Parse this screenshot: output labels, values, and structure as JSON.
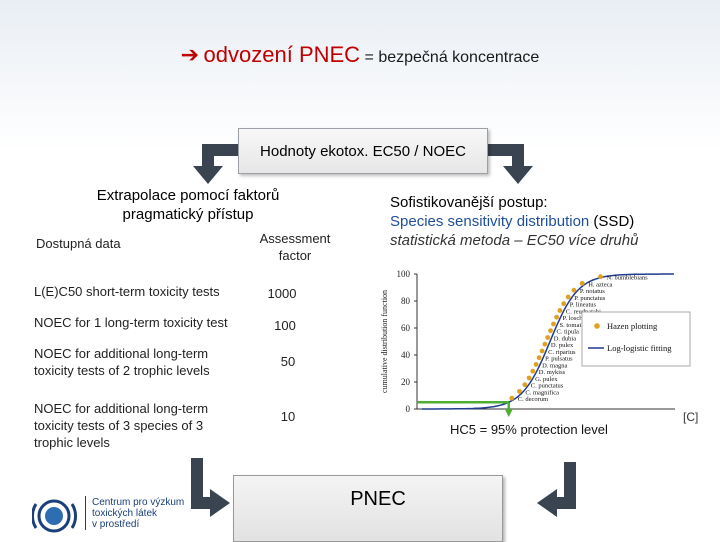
{
  "title": {
    "arrow": "➔",
    "main": "odvození PNEC",
    "sub": "= bezpečná koncentrace"
  },
  "center_box": {
    "label": "Hodnoty ekotox. EC50 / NOEC"
  },
  "left": {
    "heading_line1": "Extrapolace pomocí faktorů",
    "heading_line2": "pragmatický přístup",
    "col_data": "Dostupná data",
    "col_factor_line1": "Assessment",
    "col_factor_line2": "factor",
    "rows": [
      {
        "line1": "L(E)C50 short-term toxicity tests",
        "line2": "",
        "line3": "",
        "factor": "1000"
      },
      {
        "line1": "NOEC for 1 long-term toxicity test",
        "line2": "",
        "line3": "",
        "factor": "100"
      },
      {
        "line1": "NOEC for additional long-term",
        "line2": "toxicity tests of 2 trophic levels",
        "line3": "",
        "factor": "50"
      },
      {
        "line1": "NOEC for additional long-term",
        "line2": "toxicity tests of 3 species of 3",
        "line3": "trophic levels",
        "factor": "10"
      }
    ]
  },
  "right": {
    "line1": "Sofistikovanější postup:",
    "line2_blue": "Species sensitivity distribution",
    "line2_rest": " (SSD)",
    "line3": "statistická metoda – EC50 více druhů"
  },
  "chart_data": {
    "type": "scatter",
    "ylabel": "cumulative distribution function",
    "yticks": [
      "0",
      "20",
      "40",
      "60",
      "80",
      "100"
    ],
    "ylim": [
      0,
      100
    ],
    "legend": {
      "points": "Hazen plotting",
      "line": "Log-logistic fitting"
    },
    "species": [
      "N. bumblebians",
      "H. azteca",
      "P. notatus",
      "P. punctatus",
      "P. lineatus",
      "C. reudnatabi",
      "P. loschi",
      "S. tomaillis",
      "C. tipula",
      "D. dubia",
      "D. pulex",
      "C. riparius",
      "P. pulsatus",
      "D. magna",
      "D. mykiss",
      "G. pulex",
      "C. punctatus",
      "C. magnifica",
      "C. decorum"
    ],
    "points_y": [
      98,
      93,
      88,
      83,
      78,
      73,
      68,
      63,
      58,
      53,
      48,
      43,
      38,
      33,
      28,
      23,
      18,
      13,
      8
    ],
    "hc5_marker_y": 5,
    "colors": {
      "points": "#e0a020",
      "line": "#1f3c8f",
      "hc5": "#4caf30"
    },
    "caption": "HC5 = 95% protection level"
  },
  "copyright": "[C]",
  "pnec_box": {
    "label": "PNEC"
  },
  "logo": {
    "line1": "Centrum pro výzkum",
    "line2": "toxických látek",
    "line3": "v prostředí"
  }
}
